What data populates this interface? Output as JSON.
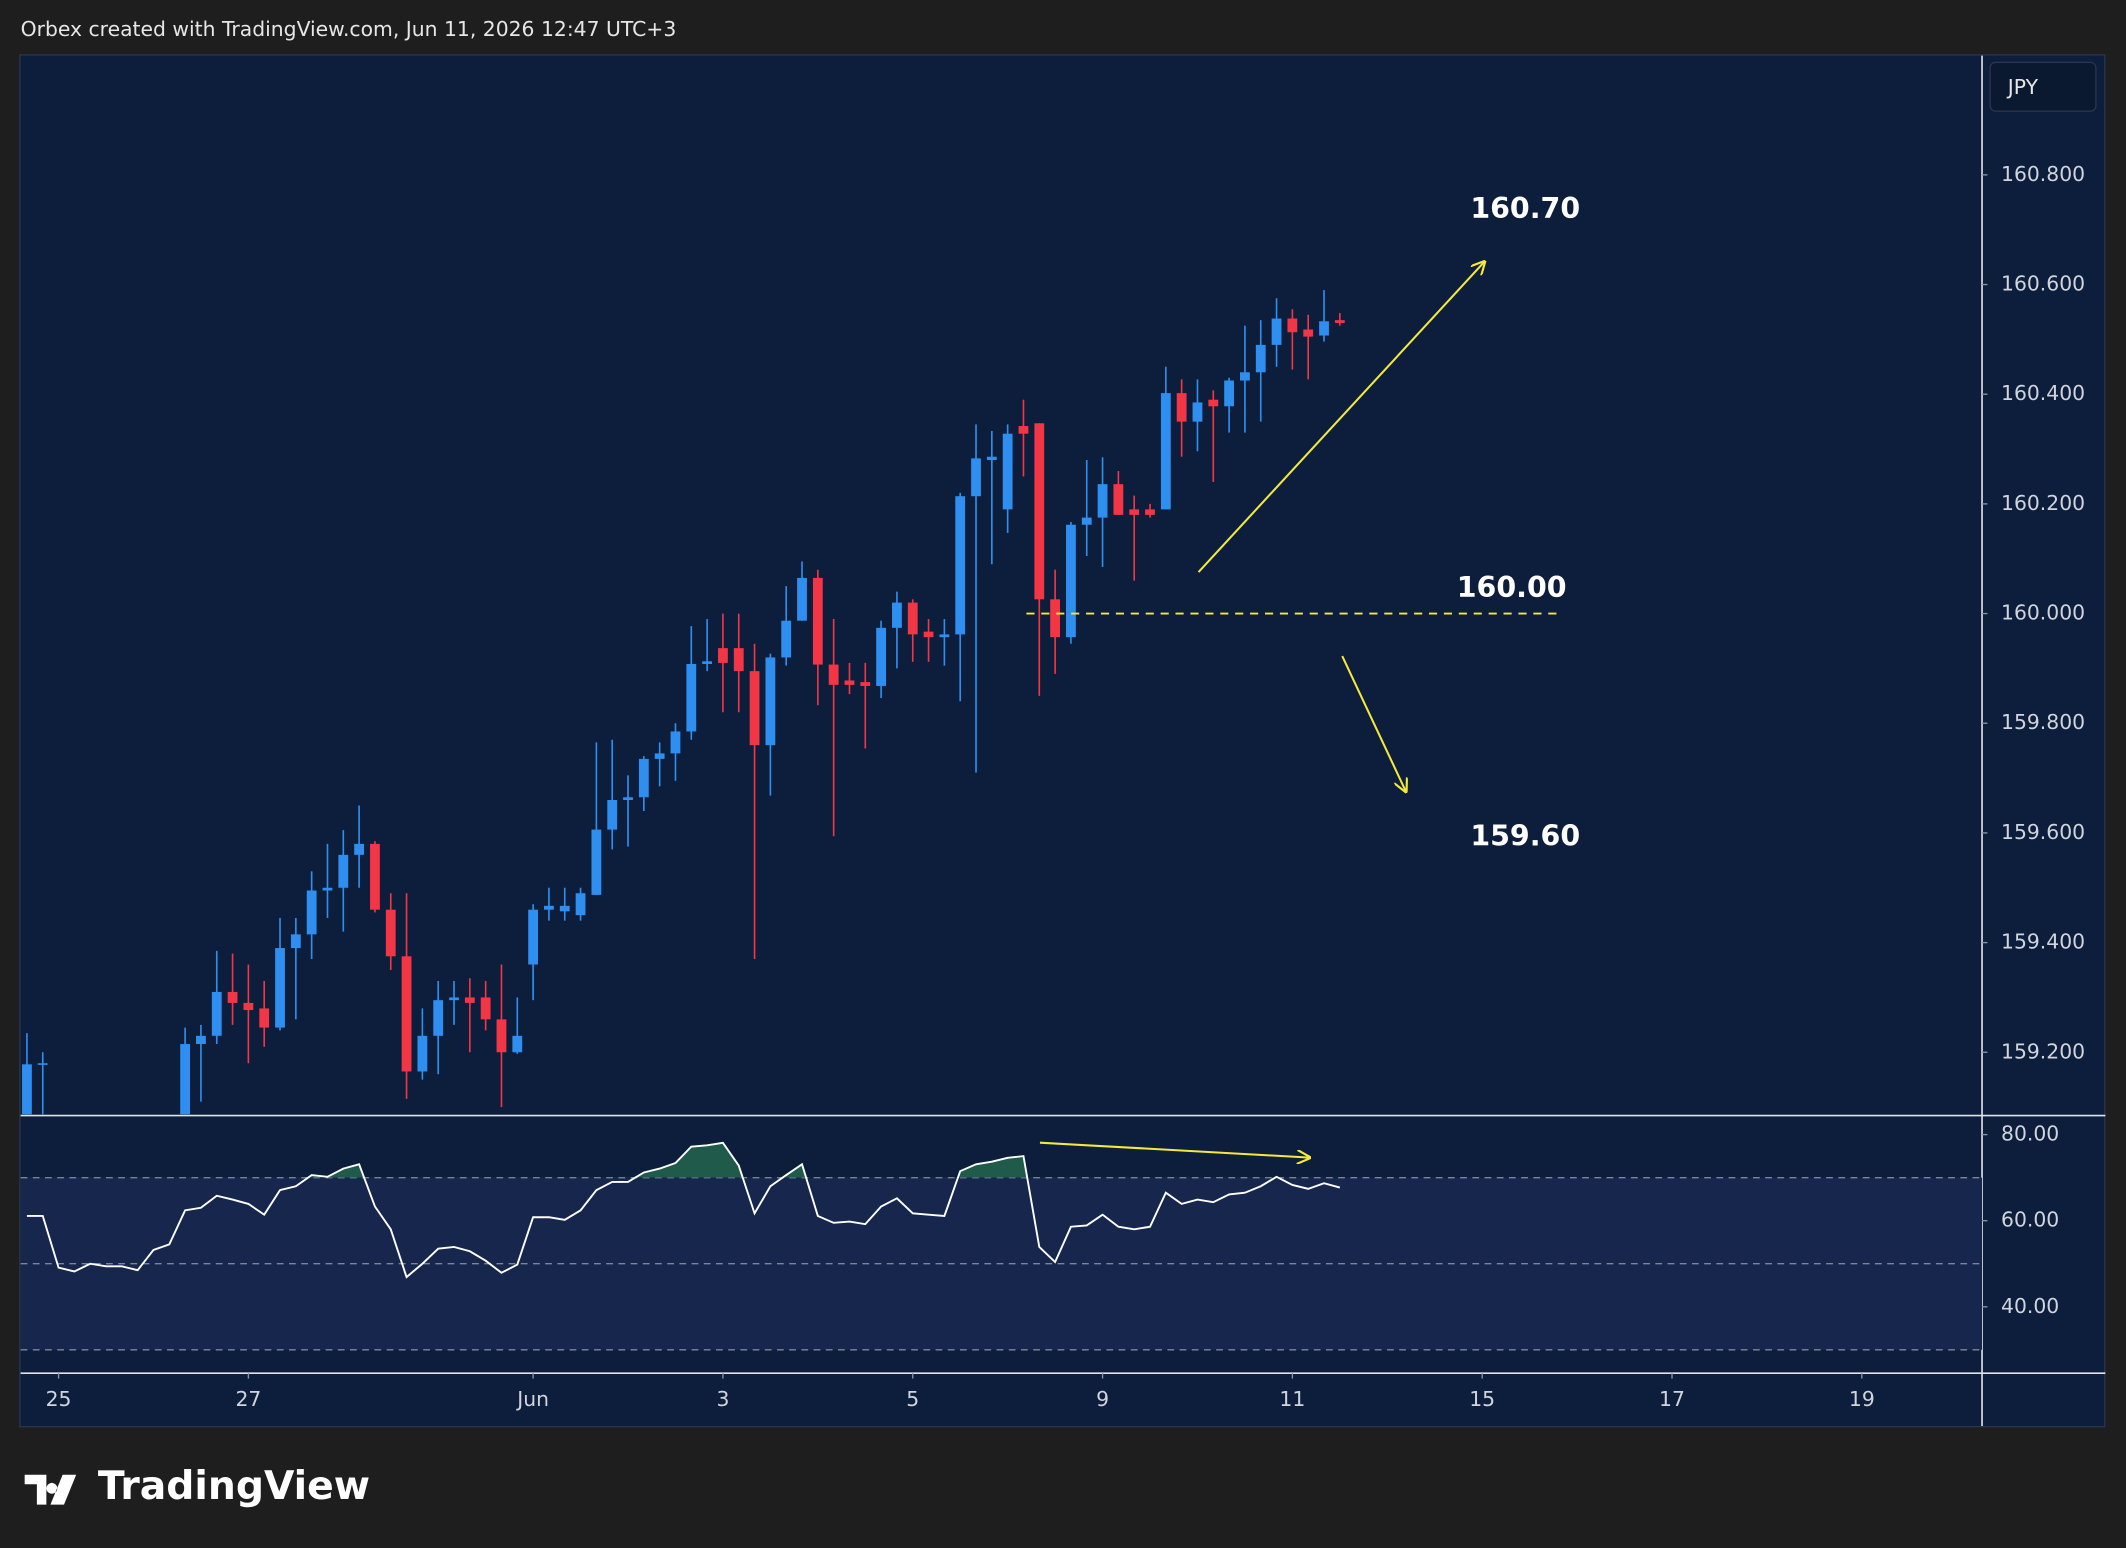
{
  "header": "Orbex created with TradingView.com, Jun 11, 2026 12:47 UTC+3",
  "brand": "TradingView",
  "chart_data": [
    {
      "type": "candlestick",
      "currency": "JPY",
      "up_color": "#2f8ff0",
      "down_color": "#f23645",
      "x": [
        -2,
        -1,
        8,
        9,
        10,
        11,
        12,
        13,
        14,
        15,
        16,
        17,
        18,
        19,
        20,
        21,
        22,
        23,
        24,
        25,
        26,
        27,
        28,
        29,
        30,
        31,
        32,
        33,
        34,
        35,
        36,
        37,
        38,
        39,
        40,
        41,
        42,
        43,
        44,
        45,
        46,
        47,
        48,
        49,
        50,
        51,
        52,
        53,
        54,
        55,
        56,
        57,
        58,
        59,
        60,
        61,
        62,
        63,
        64,
        65,
        66,
        67,
        68,
        69,
        70,
        71,
        72,
        73,
        74,
        75,
        76,
        77,
        78,
        79,
        80,
        81
      ],
      "open": [
        159.05,
        159.18,
        159.05,
        159.215,
        159.23,
        159.31,
        159.29,
        159.28,
        159.245,
        159.39,
        159.415,
        159.495,
        159.5,
        159.56,
        159.58,
        159.46,
        159.375,
        159.165,
        159.23,
        159.295,
        159.3,
        159.3,
        159.26,
        159.2,
        159.36,
        159.46,
        159.457,
        159.45,
        159.487,
        159.606,
        159.66,
        159.665,
        159.735,
        159.745,
        159.785,
        159.908,
        159.937,
        159.937,
        159.895,
        159.76,
        159.92,
        159.987,
        160.065,
        159.907,
        159.878,
        159.875,
        159.868,
        159.974,
        160.02,
        159.967,
        159.957,
        159.962,
        160.214,
        160.28,
        160.19,
        160.342,
        160.347,
        160.026,
        159.957,
        160.162,
        160.175,
        160.236,
        160.19,
        160.19,
        160.19,
        160.402,
        160.35,
        160.39,
        160.378,
        160.425,
        160.44,
        160.49,
        160.538,
        160.518,
        160.507,
        160.535
      ],
      "high": [
        159.235,
        159.2,
        159.245,
        159.25,
        159.385,
        159.38,
        159.36,
        159.33,
        159.445,
        159.445,
        159.53,
        159.58,
        159.605,
        159.65,
        159.585,
        159.49,
        159.49,
        159.28,
        159.33,
        159.33,
        159.335,
        159.33,
        159.36,
        159.3,
        159.47,
        159.5,
        159.5,
        159.5,
        159.765,
        159.77,
        159.705,
        159.74,
        159.765,
        159.8,
        159.977,
        159.99,
        160.0,
        160.0,
        159.945,
        159.927,
        160.05,
        160.095,
        160.08,
        159.99,
        159.91,
        159.91,
        159.987,
        160.04,
        160.026,
        159.99,
        159.99,
        160.22,
        160.345,
        160.333,
        160.345,
        160.39,
        160.347,
        160.08,
        160.167,
        160.28,
        160.285,
        160.26,
        160.215,
        160.2,
        160.45,
        160.427,
        160.427,
        160.407,
        160.43,
        160.525,
        160.535,
        160.575,
        160.555,
        160.545,
        160.59,
        160.548
      ],
      "low": [
        159.0,
        159.0,
        159.0,
        159.11,
        159.215,
        159.25,
        159.18,
        159.21,
        159.24,
        159.26,
        159.37,
        159.445,
        159.42,
        159.5,
        159.455,
        159.35,
        159.115,
        159.15,
        159.16,
        159.25,
        159.2,
        159.24,
        159.1,
        159.197,
        159.295,
        159.44,
        159.44,
        159.44,
        159.487,
        159.57,
        159.575,
        159.64,
        159.685,
        159.695,
        159.77,
        159.895,
        159.82,
        159.82,
        159.37,
        159.668,
        159.905,
        159.987,
        159.833,
        159.594,
        159.853,
        159.754,
        159.846,
        159.9,
        159.912,
        159.912,
        159.905,
        159.84,
        159.71,
        160.09,
        160.147,
        160.25,
        159.85,
        159.89,
        159.945,
        160.105,
        160.085,
        160.18,
        160.06,
        160.175,
        160.19,
        160.286,
        160.296,
        160.24,
        160.33,
        160.33,
        160.35,
        160.45,
        160.445,
        160.427,
        160.496,
        160.525
      ],
      "close": [
        159.178,
        159.18,
        159.215,
        159.23,
        159.31,
        159.29,
        159.277,
        159.245,
        159.39,
        159.415,
        159.495,
        159.5,
        159.56,
        159.58,
        159.46,
        159.375,
        159.165,
        159.23,
        159.295,
        159.3,
        159.29,
        159.26,
        159.2,
        159.23,
        159.46,
        159.467,
        159.467,
        159.49,
        159.606,
        159.66,
        159.665,
        159.735,
        159.745,
        159.785,
        159.908,
        159.913,
        159.91,
        159.895,
        159.76,
        159.92,
        159.987,
        160.065,
        159.907,
        159.87,
        159.87,
        159.868,
        159.974,
        160.02,
        159.962,
        159.957,
        159.962,
        160.214,
        160.283,
        160.286,
        160.328,
        160.328,
        160.026,
        159.957,
        160.162,
        160.175,
        160.236,
        160.18,
        160.18,
        160.18,
        160.402,
        160.35,
        160.385,
        160.378,
        160.425,
        160.44,
        160.49,
        160.538,
        160.513,
        160.505,
        160.533,
        160.53
      ],
      "xlim": [
        -2.4,
        121.6
      ],
      "ylim": [
        159.087,
        161.02
      ],
      "yticks": [
        {
          "value": 160.8,
          "label": "160.800"
        },
        {
          "value": 160.6,
          "label": "160.600"
        },
        {
          "value": 160.4,
          "label": "160.400"
        },
        {
          "value": 160.2,
          "label": "160.200"
        },
        {
          "value": 160.0,
          "label": "160.000"
        },
        {
          "value": 159.8,
          "label": "159.800"
        },
        {
          "value": 159.6,
          "label": "159.600"
        },
        {
          "value": 159.4,
          "label": "159.400"
        },
        {
          "value": 159.2,
          "label": "159.200"
        }
      ],
      "level": {
        "value": 160.0,
        "label": "160.00"
      },
      "annotations": [
        "160.70",
        "159.60"
      ]
    },
    {
      "type": "line",
      "color": "#ffffff",
      "fill_color": "#1f5a4a",
      "x": [
        -2,
        -1,
        0,
        1,
        2,
        3,
        4,
        5,
        6,
        7,
        8,
        9,
        10,
        11,
        12,
        13,
        14,
        15,
        16,
        17,
        18,
        19,
        20,
        21,
        22,
        23,
        24,
        25,
        26,
        27,
        28,
        29,
        30,
        31,
        32,
        33,
        34,
        35,
        36,
        37,
        38,
        39,
        40,
        41,
        42,
        43,
        44,
        45,
        46,
        47,
        48,
        49,
        50,
        51,
        52,
        53,
        54,
        55,
        56,
        57,
        58,
        59,
        60,
        61,
        62,
        63,
        64,
        65,
        66,
        67,
        68,
        69,
        70,
        71,
        72,
        73,
        74,
        75,
        76,
        77,
        78,
        79,
        80,
        81
      ],
      "values": [
        61.1,
        61.1,
        49.1,
        48.2,
        50,
        49.4,
        49.4,
        48.5,
        53.2,
        54.5,
        62.4,
        63,
        65.8,
        64.9,
        63.9,
        61.4,
        67.1,
        68,
        70.6,
        70.2,
        72.1,
        73.1,
        63.3,
        58,
        46.9,
        50,
        53.5,
        53.9,
        52.9,
        50.7,
        47.9,
        49.8,
        60.8,
        60.8,
        60.2,
        62.4,
        67.1,
        69,
        69,
        71.2,
        72.1,
        73.4,
        77.2,
        77.5,
        78.1,
        72.8,
        61.7,
        68,
        70.6,
        73.1,
        61.1,
        59.5,
        59.8,
        59.2,
        63.3,
        65.2,
        61.7,
        61.4,
        61.1,
        71.5,
        73.1,
        73.7,
        74.6,
        75,
        53.9,
        50.4,
        58.6,
        58.9,
        61.4,
        58.6,
        58,
        58.6,
        66.5,
        63.9,
        64.9,
        64.3,
        66.1,
        66.5,
        68,
        70.2,
        68.3,
        67.4,
        68.7,
        67.7
      ],
      "xlim": [
        -2.4,
        121.6
      ],
      "ylim": [
        24.9,
        84.1
      ],
      "yticks": [
        {
          "value": 80,
          "label": "80.00"
        },
        {
          "value": 60,
          "label": "60.00"
        },
        {
          "value": 40,
          "label": "40.00"
        }
      ],
      "bands": [
        70,
        50,
        30
      ],
      "xticks": [
        {
          "value": 0,
          "label": "25"
        },
        {
          "value": 12,
          "label": "27"
        },
        {
          "value": 30,
          "label": "Jun"
        },
        {
          "value": 42,
          "label": "3"
        },
        {
          "value": 54,
          "label": "5"
        },
        {
          "value": 66,
          "label": "9"
        },
        {
          "value": 78,
          "label": "11"
        },
        {
          "value": 90,
          "label": "15"
        },
        {
          "value": 102,
          "label": "17"
        },
        {
          "value": 114,
          "label": "19"
        }
      ]
    }
  ]
}
